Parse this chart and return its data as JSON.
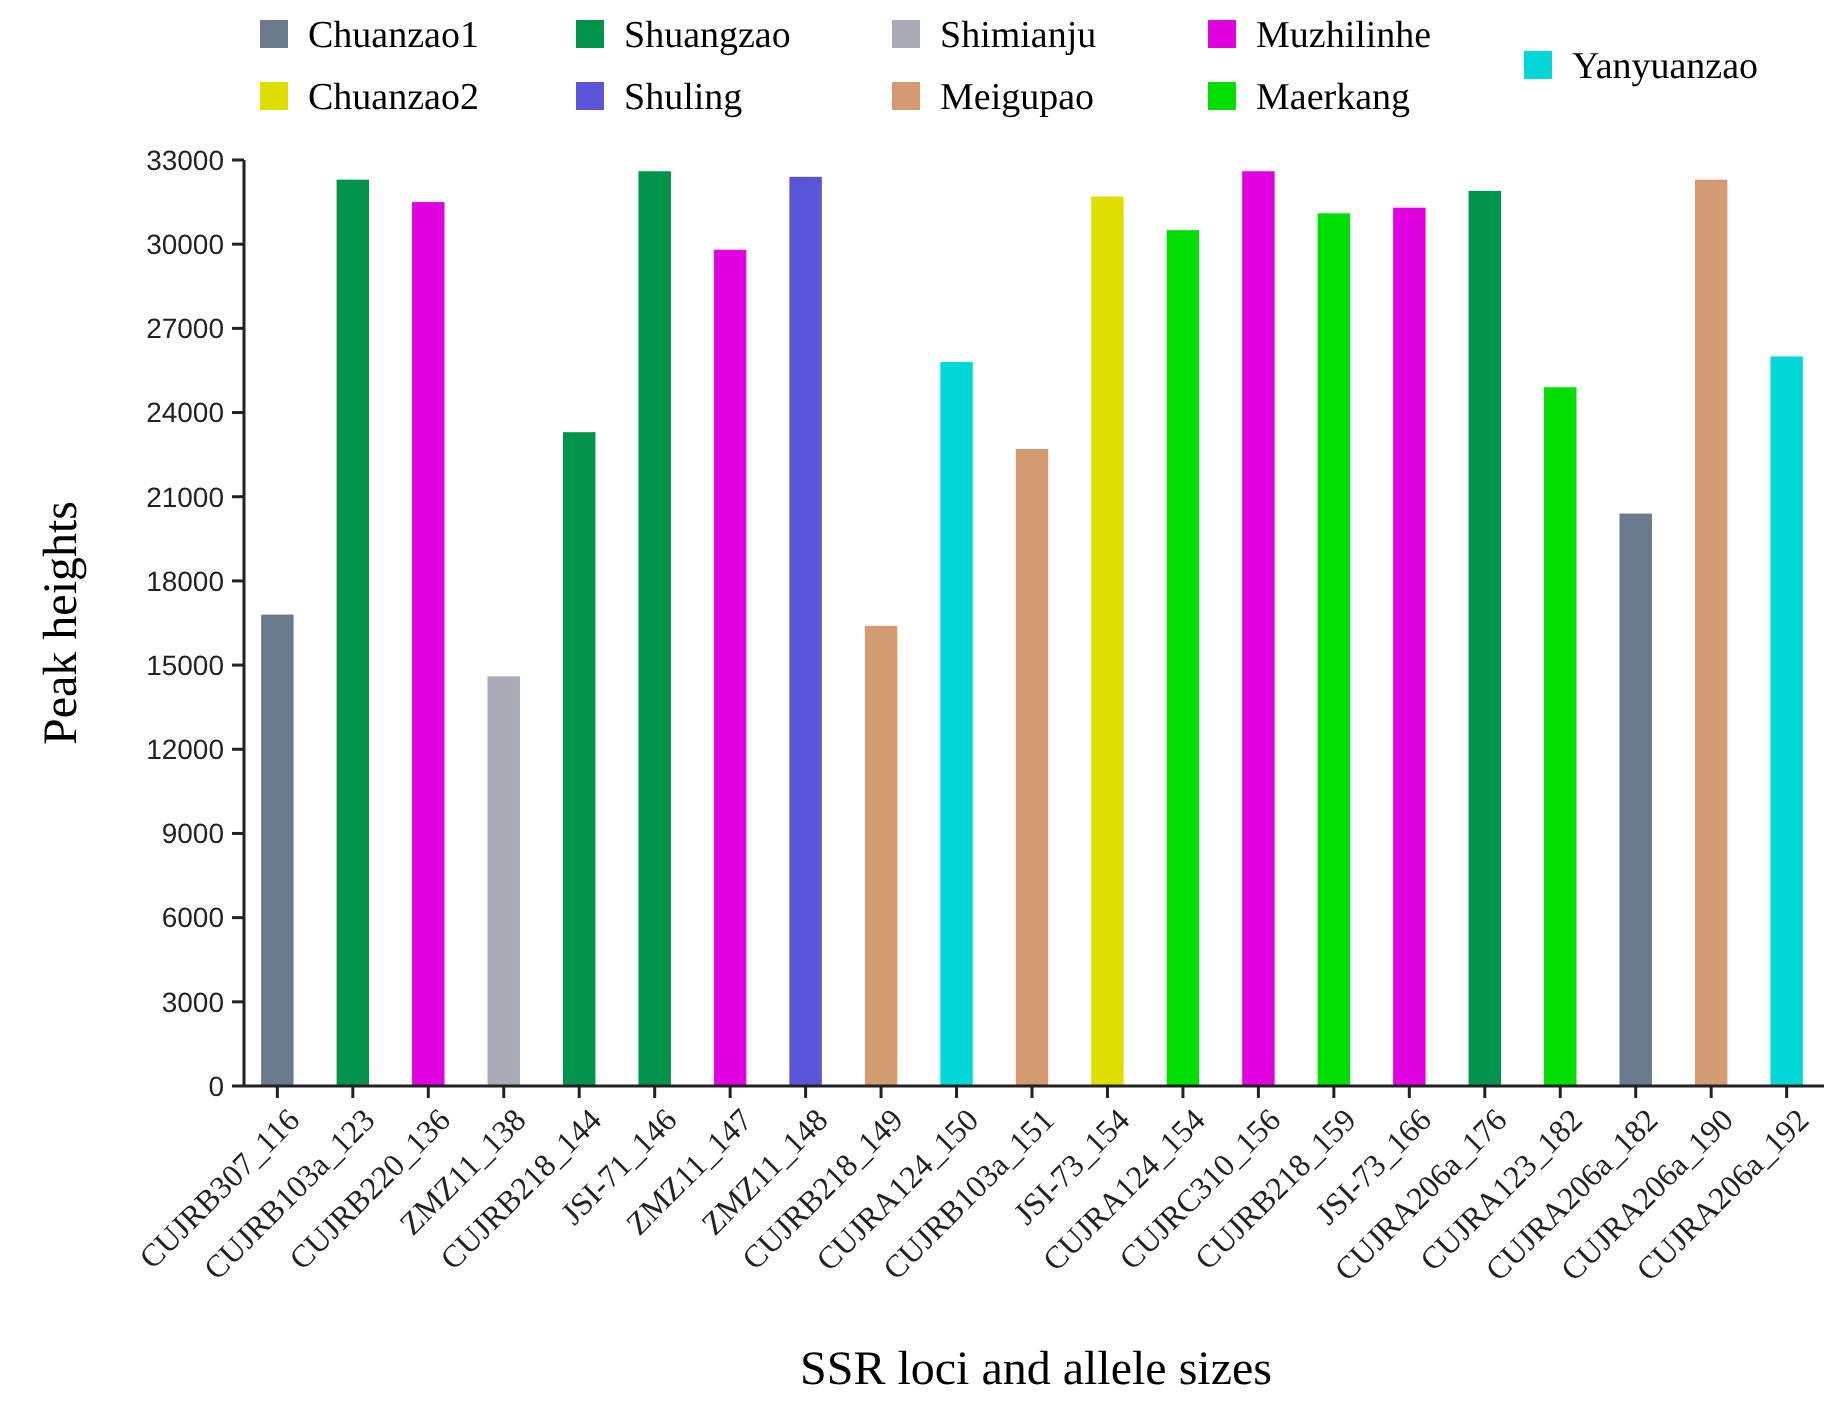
{
  "chart_data": {
    "type": "bar",
    "stacked": true,
    "xlabel": "SSR loci and allele sizes",
    "ylabel": "Peak heights",
    "categories": [
      "CUJRB307_116",
      "CUJRB103a_123",
      "CUJRB220_136",
      "ZMZ11_138",
      "CUJRB218_144",
      "JSI-71_146",
      "ZMZ11_147",
      "ZMZ11_148",
      "CUJRB218_149",
      "CUJRA124_150",
      "CUJRB103a_151",
      "JSI-73_154",
      "CUJRA124_154",
      "CUJRC310_156",
      "CUJRB218_159",
      "JSI-73_166",
      "CUJRA206a_176",
      "CUJRA123_182",
      "CUJRA206a_182",
      "CUJRA206a_190",
      "CUJRA206a_192"
    ],
    "ylim": [
      0,
      33000
    ],
    "yticks": [
      0,
      3000,
      6000,
      9000,
      12000,
      15000,
      18000,
      21000,
      24000,
      27000,
      30000,
      33000
    ],
    "grid": false,
    "legend": "top",
    "series": [
      {
        "name": "Chuanzao1",
        "color": "#6b7a8f",
        "values": [
          16800,
          null,
          null,
          null,
          null,
          null,
          null,
          null,
          null,
          null,
          null,
          null,
          null,
          null,
          null,
          null,
          null,
          null,
          20400,
          null,
          null
        ]
      },
      {
        "name": "Chuanzao2",
        "color": "#dede00",
        "values": [
          null,
          null,
          null,
          null,
          null,
          null,
          null,
          null,
          null,
          null,
          null,
          31700,
          null,
          null,
          null,
          null,
          null,
          null,
          null,
          null,
          null
        ]
      },
      {
        "name": "Shuangzao",
        "color": "#00934a",
        "values": [
          null,
          32300,
          null,
          null,
          23300,
          32600,
          null,
          null,
          null,
          null,
          null,
          null,
          null,
          null,
          null,
          null,
          31900,
          null,
          null,
          null,
          null
        ]
      },
      {
        "name": "Shuling",
        "color": "#5a55d8",
        "values": [
          null,
          null,
          null,
          null,
          null,
          null,
          null,
          32400,
          null,
          null,
          null,
          null,
          null,
          null,
          null,
          null,
          null,
          null,
          null,
          null,
          null
        ]
      },
      {
        "name": "Shimianju",
        "color": "#a9acb5",
        "values": [
          null,
          null,
          null,
          14600,
          null,
          null,
          null,
          null,
          null,
          null,
          null,
          null,
          null,
          null,
          null,
          null,
          null,
          null,
          null,
          null,
          null
        ]
      },
      {
        "name": "Meigupao",
        "color": "#d49a72",
        "values": [
          null,
          null,
          null,
          null,
          null,
          null,
          null,
          null,
          16400,
          null,
          22700,
          null,
          null,
          null,
          null,
          null,
          null,
          null,
          null,
          32300,
          null
        ]
      },
      {
        "name": "Muzhilinhe",
        "color": "#e000e0",
        "values": [
          null,
          null,
          31500,
          null,
          null,
          null,
          29800,
          null,
          null,
          null,
          null,
          null,
          null,
          32600,
          null,
          31300,
          null,
          null,
          null,
          null,
          null
        ]
      },
      {
        "name": "Maerkang",
        "color": "#00dd00",
        "values": [
          null,
          null,
          null,
          null,
          null,
          null,
          null,
          null,
          null,
          null,
          null,
          null,
          30500,
          null,
          31100,
          null,
          null,
          24900,
          null,
          null,
          null
        ]
      },
      {
        "name": "Yanyuanzao",
        "color": "#00d8d8",
        "values": [
          null,
          null,
          null,
          null,
          null,
          null,
          null,
          null,
          null,
          25800,
          null,
          null,
          null,
          null,
          null,
          null,
          null,
          null,
          null,
          null,
          26000
        ]
      }
    ]
  }
}
